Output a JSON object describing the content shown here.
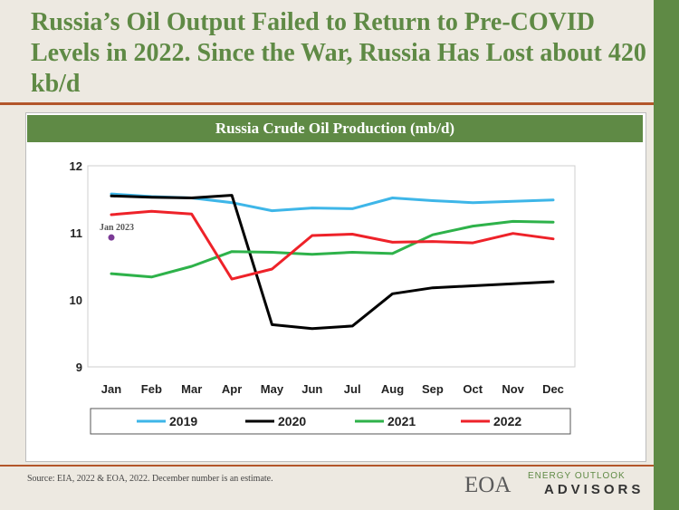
{
  "slide_title": "Russia’s Oil Output Failed to Return to Pre-COVID Levels in 2022. Since the War, Russia Has Lost about 420 kb/d",
  "source_note": "Source: EIA, 2022 & EOA, 2022. December number is an estimate.",
  "logo": {
    "main": "EOA",
    "small": "ENERGY OUTLOOK",
    "big": "ADVISORS"
  },
  "colors": {
    "brand_green": "#5f8a45",
    "rule_orange": "#b3562a"
  },
  "chart_data": {
    "type": "line",
    "title": "Russia Crude Oil Production (mb/d)",
    "categories": [
      "Jan",
      "Feb",
      "Mar",
      "Apr",
      "May",
      "Jun",
      "Jul",
      "Aug",
      "Sep",
      "Oct",
      "Nov",
      "Dec"
    ],
    "ylim": [
      9,
      12
    ],
    "yticks": [
      9,
      10,
      11,
      12
    ],
    "grid": false,
    "legend_position": "bottom",
    "series": [
      {
        "name": "2019",
        "color": "#3eb6e8",
        "values": [
          11.58,
          11.54,
          11.52,
          11.45,
          11.33,
          11.37,
          11.36,
          11.52,
          11.48,
          11.45,
          11.47,
          11.49
        ]
      },
      {
        "name": "2020",
        "color": "#000000",
        "values": [
          11.55,
          11.53,
          11.52,
          11.56,
          9.63,
          9.57,
          9.61,
          10.09,
          10.18,
          10.21,
          10.24,
          10.27
        ]
      },
      {
        "name": "2021",
        "color": "#2eb24a",
        "values": [
          10.39,
          10.34,
          10.5,
          10.72,
          10.71,
          10.68,
          10.71,
          10.69,
          10.97,
          11.1,
          11.17,
          11.16
        ]
      },
      {
        "name": "2022",
        "color": "#ee2229",
        "values": [
          11.27,
          11.32,
          11.28,
          10.31,
          10.46,
          10.96,
          10.98,
          10.86,
          10.87,
          10.85,
          10.99,
          10.91
        ]
      }
    ],
    "annotation": {
      "text": "Jan 2023",
      "category": "Jan",
      "value": 10.93,
      "color": "#7b3a96"
    }
  }
}
